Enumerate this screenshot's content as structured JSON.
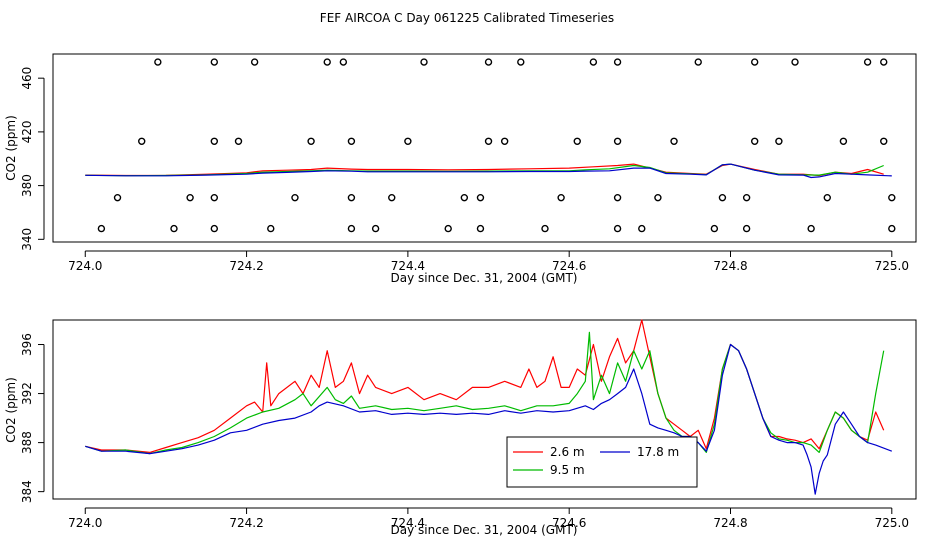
{
  "title": "FEF AIRCOA C  Day 061225  Calibrated Timeseries",
  "chart_data": [
    {
      "type": "scatter",
      "xlabel": "Day since Dec. 31, 2004 (GMT)",
      "ylabel": "CO2 (ppm)",
      "xlim": [
        723.96,
        725.03
      ],
      "ylim": [
        338,
        478
      ],
      "xticks": [
        "724.0",
        "724.2",
        "724.4",
        "724.6",
        "724.8",
        "725.0"
      ],
      "yticks": [
        "340",
        "380",
        "420",
        "460"
      ],
      "series": [
        {
          "name": "2.6 m",
          "color": "#ff0000",
          "x": [
            724.0,
            724.05,
            724.1,
            724.15,
            724.2,
            724.22,
            724.25,
            724.28,
            724.3,
            724.33,
            724.35,
            724.4,
            724.45,
            724.5,
            724.55,
            724.6,
            724.63,
            724.66,
            724.68,
            724.7,
            724.72,
            724.75,
            724.77,
            724.79,
            724.8,
            724.83,
            724.86,
            724.89,
            724.91,
            724.93,
            724.95,
            724.97,
            724.99
          ],
          "values": [
            387.8,
            387.5,
            387.7,
            388.5,
            389.5,
            391.0,
            391.5,
            392.0,
            393.0,
            392.3,
            392.0,
            392.0,
            391.8,
            392.0,
            392.5,
            393.0,
            394.0,
            395.0,
            396.0,
            393.0,
            390.0,
            389.0,
            388.5,
            395.0,
            396.0,
            392.0,
            388.5,
            388.5,
            387.5,
            390.0,
            389.0,
            392.0,
            388.5
          ]
        },
        {
          "name": "9.5 m",
          "color": "#00bb00",
          "x": [
            724.0,
            724.05,
            724.1,
            724.15,
            724.2,
            724.22,
            724.25,
            724.28,
            724.3,
            724.33,
            724.35,
            724.4,
            724.45,
            724.5,
            724.55,
            724.6,
            724.62,
            724.65,
            724.68,
            724.7,
            724.72,
            724.75,
            724.77,
            724.79,
            724.8,
            724.83,
            724.86,
            724.89,
            724.91,
            724.93,
            724.95,
            724.97,
            724.99
          ],
          "values": [
            387.7,
            387.4,
            387.5,
            388.0,
            389.0,
            390.0,
            390.5,
            391.0,
            391.5,
            391.0,
            390.8,
            390.8,
            390.6,
            390.8,
            391.0,
            391.0,
            391.8,
            392.5,
            395.0,
            393.5,
            389.5,
            388.8,
            388.2,
            395.5,
            396.0,
            391.5,
            388.5,
            388.0,
            387.8,
            390.0,
            388.5,
            390.0,
            395.0
          ]
        },
        {
          "name": "17.8 m",
          "color": "#0000cc",
          "x": [
            724.0,
            724.05,
            724.1,
            724.15,
            724.2,
            724.22,
            724.25,
            724.28,
            724.3,
            724.33,
            724.35,
            724.4,
            724.45,
            724.5,
            724.55,
            724.6,
            724.62,
            724.65,
            724.68,
            724.7,
            724.72,
            724.75,
            724.77,
            724.79,
            724.8,
            724.83,
            724.86,
            724.89,
            724.9,
            724.91,
            724.93,
            724.95,
            724.97,
            725.0
          ],
          "values": [
            387.7,
            387.3,
            387.3,
            387.8,
            388.5,
            389.3,
            389.8,
            390.5,
            391.0,
            390.7,
            390.3,
            390.3,
            390.3,
            390.3,
            390.5,
            390.5,
            390.8,
            391.0,
            393.0,
            393.0,
            389.0,
            388.5,
            388.0,
            395.5,
            396.0,
            391.5,
            388.0,
            387.8,
            386.0,
            386.5,
            389.0,
            388.5,
            388.0,
            387.2
          ]
        }
      ],
      "points": [
        [
          724.09,
          472
        ],
        [
          724.16,
          472
        ],
        [
          724.21,
          472
        ],
        [
          724.3,
          472
        ],
        [
          724.32,
          472
        ],
        [
          724.42,
          472
        ],
        [
          724.5,
          472
        ],
        [
          724.54,
          472
        ],
        [
          724.63,
          472
        ],
        [
          724.66,
          472
        ],
        [
          724.76,
          472
        ],
        [
          724.83,
          472
        ],
        [
          724.88,
          472
        ],
        [
          724.97,
          472
        ],
        [
          724.99,
          472
        ],
        [
          724.07,
          413
        ],
        [
          724.16,
          413
        ],
        [
          724.19,
          413
        ],
        [
          724.28,
          413
        ],
        [
          724.33,
          413
        ],
        [
          724.4,
          413
        ],
        [
          724.5,
          413
        ],
        [
          724.52,
          413
        ],
        [
          724.61,
          413
        ],
        [
          724.66,
          413
        ],
        [
          724.73,
          413
        ],
        [
          724.83,
          413
        ],
        [
          724.86,
          413
        ],
        [
          724.94,
          413
        ],
        [
          724.99,
          413
        ],
        [
          724.04,
          371
        ],
        [
          724.13,
          371
        ],
        [
          724.16,
          371
        ],
        [
          724.26,
          371
        ],
        [
          724.33,
          371
        ],
        [
          724.38,
          371
        ],
        [
          724.47,
          371
        ],
        [
          724.49,
          371
        ],
        [
          724.59,
          371
        ],
        [
          724.66,
          371
        ],
        [
          724.71,
          371
        ],
        [
          724.79,
          371
        ],
        [
          724.82,
          371
        ],
        [
          724.92,
          371
        ],
        [
          725.0,
          371
        ],
        [
          724.02,
          348
        ],
        [
          724.11,
          348
        ],
        [
          724.16,
          348
        ],
        [
          724.23,
          348
        ],
        [
          724.33,
          348
        ],
        [
          724.36,
          348
        ],
        [
          724.45,
          348
        ],
        [
          724.49,
          348
        ],
        [
          724.57,
          348
        ],
        [
          724.66,
          348
        ],
        [
          724.69,
          348
        ],
        [
          724.78,
          348
        ],
        [
          724.82,
          348
        ],
        [
          724.9,
          348
        ],
        [
          725.0,
          348
        ]
      ]
    },
    {
      "type": "line",
      "xlabel": "Day since Dec. 31, 2004 (GMT)",
      "ylabel": "CO2 (ppm)",
      "xlim": [
        723.96,
        725.03
      ],
      "ylim": [
        383.4,
        398.0
      ],
      "xticks": [
        "724.0",
        "724.2",
        "724.4",
        "724.6",
        "724.8",
        "725.0"
      ],
      "yticks": [
        "384",
        "388",
        "392",
        "396"
      ],
      "legend_position": "bottom-center",
      "series": [
        {
          "name": "2.6 m",
          "color": "#ff0000",
          "x": [
            724.0,
            724.02,
            724.05,
            724.08,
            724.1,
            724.12,
            724.14,
            724.16,
            724.18,
            724.2,
            724.21,
            724.22,
            724.225,
            724.23,
            724.24,
            724.26,
            724.27,
            724.28,
            724.29,
            724.3,
            724.31,
            724.32,
            724.33,
            724.34,
            724.35,
            724.36,
            724.38,
            724.4,
            724.42,
            724.44,
            724.46,
            724.48,
            724.5,
            724.52,
            724.54,
            724.55,
            724.56,
            724.57,
            724.58,
            724.59,
            724.6,
            724.61,
            724.62,
            724.63,
            724.64,
            724.65,
            724.66,
            724.67,
            724.68,
            724.69,
            724.7,
            724.71,
            724.72,
            724.73,
            724.74,
            724.75,
            724.76,
            724.77,
            724.78,
            724.79,
            724.8,
            724.81,
            724.82,
            724.83,
            724.84,
            724.85,
            724.86,
            724.87,
            724.88,
            724.89,
            724.9,
            724.91,
            724.92,
            724.93,
            724.94,
            724.95,
            724.96,
            724.97,
            724.98,
            724.99
          ],
          "values": [
            387.7,
            387.4,
            387.4,
            387.2,
            387.6,
            388.0,
            388.4,
            389.0,
            390.0,
            391.0,
            391.3,
            390.5,
            394.5,
            391.0,
            392.0,
            393.0,
            392.0,
            393.5,
            392.5,
            395.5,
            392.5,
            393.0,
            394.5,
            392.0,
            393.5,
            392.5,
            392.0,
            392.5,
            391.5,
            392.0,
            391.5,
            392.5,
            392.5,
            393.0,
            392.5,
            394.0,
            392.5,
            393.0,
            395.0,
            392.5,
            392.5,
            394.0,
            393.5,
            396.0,
            393.0,
            395.0,
            396.5,
            394.5,
            395.5,
            398.0,
            395.0,
            392.0,
            390.0,
            389.5,
            389.0,
            388.5,
            389.0,
            387.5,
            390.0,
            394.0,
            396.0,
            395.5,
            394.0,
            392.0,
            390.0,
            388.5,
            388.5,
            388.3,
            388.2,
            388.0,
            388.3,
            387.5,
            389.0,
            390.5,
            390.0,
            389.0,
            388.5,
            388.2,
            390.5,
            389.0
          ]
        },
        {
          "name": "9.5 m",
          "color": "#00bb00",
          "x": [
            724.0,
            724.02,
            724.05,
            724.08,
            724.1,
            724.12,
            724.14,
            724.16,
            724.18,
            724.2,
            724.22,
            724.24,
            724.26,
            724.27,
            724.28,
            724.3,
            724.31,
            724.32,
            724.33,
            724.34,
            724.36,
            724.38,
            724.4,
            724.42,
            724.44,
            724.46,
            724.48,
            724.5,
            724.52,
            724.54,
            724.56,
            724.58,
            724.6,
            724.61,
            724.62,
            724.625,
            724.63,
            724.64,
            724.65,
            724.66,
            724.67,
            724.68,
            724.69,
            724.7,
            724.71,
            724.72,
            724.73,
            724.74,
            724.75,
            724.76,
            724.77,
            724.78,
            724.79,
            724.8,
            724.81,
            724.82,
            724.83,
            724.84,
            724.85,
            724.86,
            724.87,
            724.88,
            724.89,
            724.9,
            724.91,
            724.92,
            724.93,
            724.94,
            724.95,
            724.96,
            724.97,
            724.98,
            724.99
          ],
          "values": [
            387.7,
            387.3,
            387.4,
            387.1,
            387.4,
            387.6,
            388.0,
            388.5,
            389.2,
            390.0,
            390.5,
            390.8,
            391.5,
            392.0,
            391.0,
            392.5,
            391.5,
            391.2,
            391.8,
            390.8,
            391.0,
            390.7,
            390.8,
            390.6,
            390.8,
            391.0,
            390.7,
            390.8,
            391.0,
            390.6,
            391.0,
            391.0,
            391.2,
            392.0,
            393.0,
            397.0,
            391.5,
            393.5,
            392.0,
            394.5,
            393.0,
            395.5,
            394.0,
            395.5,
            392.0,
            390.0,
            389.0,
            388.5,
            388.5,
            388.0,
            387.2,
            389.5,
            394.0,
            396.0,
            395.5,
            394.0,
            392.0,
            390.0,
            388.8,
            388.3,
            388.2,
            388.0,
            388.0,
            387.8,
            387.2,
            389.0,
            390.5,
            390.0,
            389.0,
            388.5,
            388.0,
            392.0,
            395.5
          ]
        },
        {
          "name": "17.8 m",
          "color": "#0000cc",
          "x": [
            724.0,
            724.02,
            724.05,
            724.08,
            724.1,
            724.12,
            724.14,
            724.16,
            724.18,
            724.2,
            724.22,
            724.24,
            724.26,
            724.28,
            724.29,
            724.3,
            724.32,
            724.34,
            724.36,
            724.38,
            724.4,
            724.42,
            724.44,
            724.46,
            724.48,
            724.5,
            724.52,
            724.54,
            724.56,
            724.58,
            724.6,
            724.62,
            724.63,
            724.64,
            724.65,
            724.66,
            724.67,
            724.68,
            724.69,
            724.7,
            724.71,
            724.72,
            724.73,
            724.74,
            724.75,
            724.76,
            724.77,
            724.78,
            724.79,
            724.8,
            724.81,
            724.82,
            724.83,
            724.84,
            724.85,
            724.86,
            724.87,
            724.88,
            724.89,
            724.895,
            724.9,
            724.905,
            724.91,
            724.915,
            724.92,
            724.93,
            724.94,
            724.95,
            724.96,
            724.97,
            724.98,
            725.0
          ],
          "values": [
            387.7,
            387.3,
            387.3,
            387.1,
            387.3,
            387.5,
            387.8,
            388.2,
            388.8,
            389.0,
            389.5,
            389.8,
            390.0,
            390.5,
            391.0,
            391.3,
            391.0,
            390.5,
            390.6,
            390.3,
            390.4,
            390.3,
            390.4,
            390.3,
            390.4,
            390.3,
            390.6,
            390.4,
            390.6,
            390.5,
            390.6,
            391.0,
            390.7,
            391.2,
            391.5,
            392.0,
            392.5,
            394.0,
            392.0,
            389.5,
            389.2,
            389.0,
            388.8,
            388.5,
            388.5,
            388.0,
            387.3,
            389.0,
            393.5,
            396.0,
            395.5,
            394.0,
            392.0,
            390.0,
            388.5,
            388.2,
            388.0,
            388.0,
            387.8,
            387.0,
            386.0,
            383.8,
            385.5,
            386.5,
            387.0,
            389.5,
            390.5,
            389.5,
            388.5,
            388.0,
            387.8,
            387.3
          ]
        }
      ]
    }
  ]
}
